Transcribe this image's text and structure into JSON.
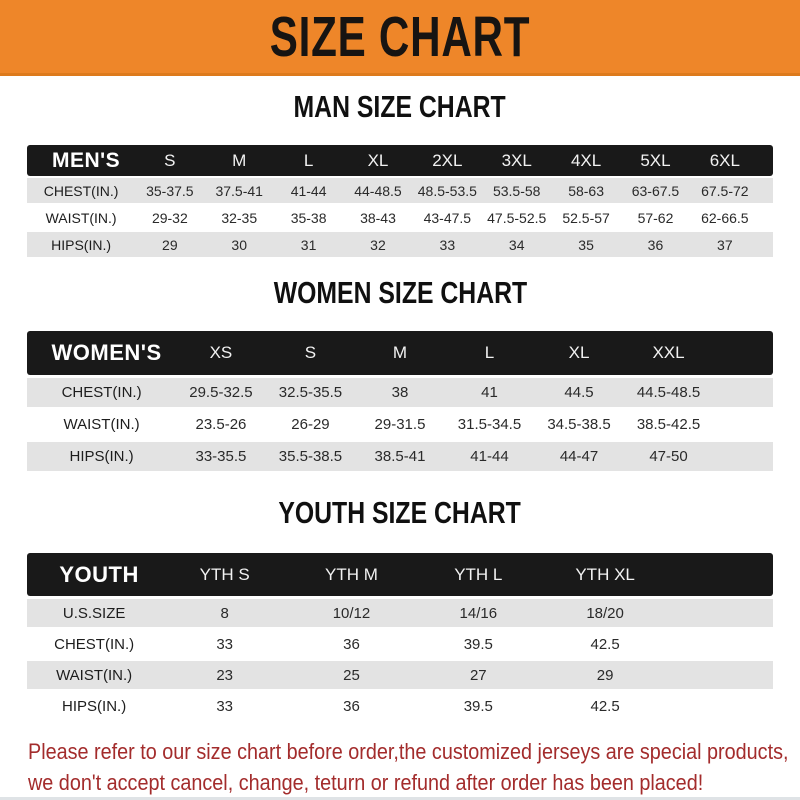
{
  "banner": {
    "title": "SIZE CHART"
  },
  "colors": {
    "banner_bg": "#EE8629",
    "banner_edge": "#DD7A1C",
    "bar_bg": "#191919",
    "row_gray": "#E3E3E3",
    "footer_red": "#A32C2C"
  },
  "sections": [
    {
      "name": "men",
      "heading": "MAN SIZE CHART",
      "label": "MEN'S",
      "columns": [
        "S",
        "M",
        "L",
        "XL",
        "2XL",
        "3XL",
        "4XL",
        "5XL",
        "6XL"
      ],
      "rows": [
        {
          "label": "CHEST(IN.)",
          "values": [
            "35-37.5",
            "37.5-41",
            "41-44",
            "44-48.5",
            "48.5-53.5",
            "53.5-58",
            "58-63",
            "63-67.5",
            "67.5-72"
          ]
        },
        {
          "label": "WAIST(IN.)",
          "values": [
            "29-32",
            "32-35",
            "35-38",
            "38-43",
            "43-47.5",
            "47.5-52.5",
            "52.5-57",
            "57-62",
            "62-66.5"
          ]
        },
        {
          "label": "HIPS(IN.)",
          "values": [
            "29",
            "30",
            "31",
            "32",
            "33",
            "34",
            "35",
            "36",
            "37"
          ]
        }
      ]
    },
    {
      "name": "women",
      "heading": "WOMEN SIZE CHART",
      "label": "WOMEN'S",
      "columns": [
        "XS",
        "S",
        "M",
        "L",
        "XL",
        "XXL"
      ],
      "rows": [
        {
          "label": "CHEST(IN.)",
          "values": [
            "29.5-32.5",
            "32.5-35.5",
            "38",
            "41",
            "44.5",
            "44.5-48.5"
          ]
        },
        {
          "label": "WAIST(IN.)",
          "values": [
            "23.5-26",
            "26-29",
            "29-31.5",
            "31.5-34.5",
            "34.5-38.5",
            "38.5-42.5"
          ]
        },
        {
          "label": "HIPS(IN.)",
          "values": [
            "33-35.5",
            "35.5-38.5",
            "38.5-41",
            "41-44",
            "44-47",
            "47-50"
          ]
        }
      ]
    },
    {
      "name": "youth",
      "heading": "YOUTH SIZE CHART",
      "label": "YOUTH",
      "columns": [
        "YTH S",
        "YTH M",
        "YTH L",
        "YTH XL"
      ],
      "rows": [
        {
          "label": "U.S.SIZE",
          "values": [
            "8",
            "10/12",
            "14/16",
            "18/20"
          ]
        },
        {
          "label": "CHEST(IN.)",
          "values": [
            "33",
            "36",
            "39.5",
            "42.5"
          ]
        },
        {
          "label": "WAIST(IN.)",
          "values": [
            "23",
            "25",
            "27",
            "29"
          ]
        },
        {
          "label": "HIPS(IN.)",
          "values": [
            "33",
            "36",
            "39.5",
            "42.5"
          ]
        }
      ]
    }
  ],
  "footer": {
    "line1": "Please refer to our size chart before order,the customized jerseys are special products,",
    "line2": "we don't accept cancel, change, teturn or refund after order has been placed!"
  }
}
